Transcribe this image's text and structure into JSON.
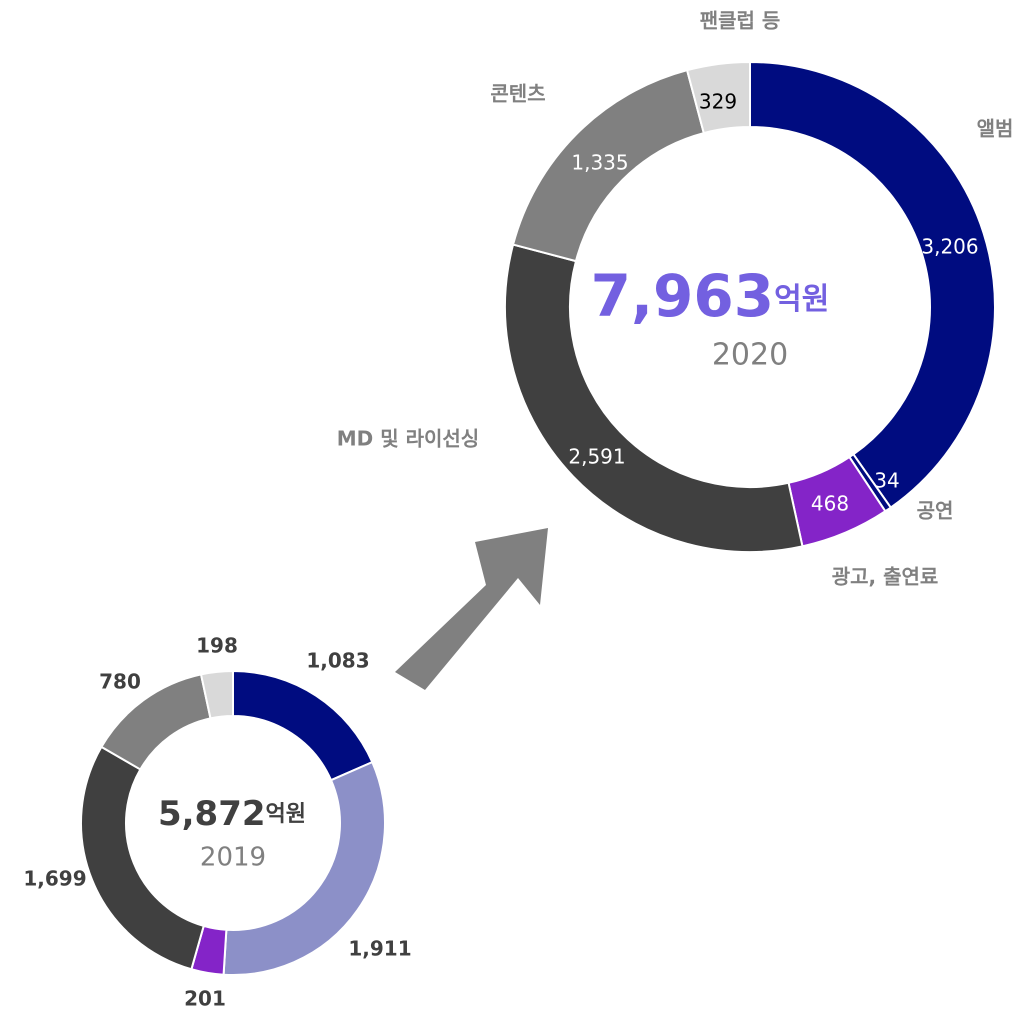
{
  "chart_data": [
    {
      "type": "donut",
      "center_text": "7,963",
      "center_unit": "억원",
      "subtitle": "2020",
      "categories": [
        "앨범",
        "공연",
        "광고, 출연료",
        "MD 및 라이선싱",
        "콘텐츠",
        "팬클럽 등"
      ],
      "values": [
        3206,
        34,
        468,
        2591,
        1335,
        329
      ],
      "value_labels": [
        "3,206",
        "34",
        "468",
        "2,591",
        "1,335",
        "329"
      ],
      "colors": [
        "#000c80",
        "#000c80",
        "#8424c8",
        "#404040",
        "#808080",
        "#d9d9d9"
      ]
    },
    {
      "type": "donut",
      "center_text": "5,872",
      "center_unit": "억원",
      "subtitle": "2019",
      "values": [
        1083,
        1911,
        201,
        1699,
        780,
        198
      ],
      "value_labels": [
        "1,083",
        "1,911",
        "201",
        "1,699",
        "780",
        "198"
      ],
      "colors": [
        "#000c80",
        "#8c90c8",
        "#8424c8",
        "#404040",
        "#808080",
        "#d9d9d9"
      ]
    }
  ]
}
